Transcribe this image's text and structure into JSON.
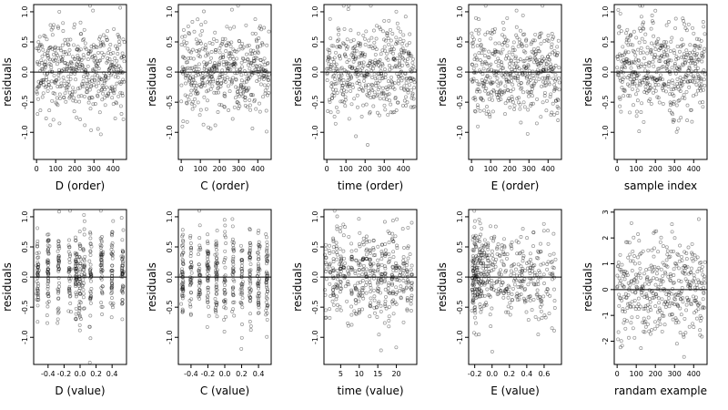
{
  "chart_data": [
    {
      "type": "scatter",
      "xlabel": "D (order)",
      "ylabel": "residuals",
      "xlim": [
        -15,
        470
      ],
      "ylim": [
        -1.45,
        1.12
      ],
      "xticks": [
        "0",
        "100",
        "200",
        "300",
        "400"
      ],
      "xtick_values": [
        0,
        100,
        200,
        300,
        400
      ],
      "yticks": [
        "1.0",
        "0.5",
        "0.0",
        "-0.5",
        "-1.0"
      ],
      "ytick_values": [
        1.0,
        0.5,
        0.0,
        -0.5,
        -1.0
      ],
      "zero_line": true,
      "pattern": "order",
      "n_points": 460
    },
    {
      "type": "scatter",
      "xlabel": "C (order)",
      "ylabel": "residuals",
      "xlim": [
        -15,
        470
      ],
      "ylim": [
        -1.45,
        1.12
      ],
      "xticks": [
        "0",
        "100",
        "200",
        "300",
        "400"
      ],
      "xtick_values": [
        0,
        100,
        200,
        300,
        400
      ],
      "yticks": [
        "1.0",
        "0.5",
        "0.0",
        "-0.5",
        "-1.0"
      ],
      "ytick_values": [
        1.0,
        0.5,
        0.0,
        -0.5,
        -1.0
      ],
      "zero_line": true,
      "pattern": "order",
      "n_points": 460
    },
    {
      "type": "scatter",
      "xlabel": "time (order)",
      "ylabel": "residuals",
      "xlim": [
        -15,
        470
      ],
      "ylim": [
        -1.45,
        1.12
      ],
      "xticks": [
        "0",
        "100",
        "200",
        "300",
        "400"
      ],
      "xtick_values": [
        0,
        100,
        200,
        300,
        400
      ],
      "yticks": [
        "1.0",
        "0.5",
        "0.0",
        "-0.5",
        "-1.0"
      ],
      "ytick_values": [
        1.0,
        0.5,
        0.0,
        -0.5,
        -1.0
      ],
      "zero_line": true,
      "pattern": "order",
      "n_points": 460
    },
    {
      "type": "scatter",
      "xlabel": "E (order)",
      "ylabel": "residuals",
      "xlim": [
        -15,
        470
      ],
      "ylim": [
        -1.45,
        1.12
      ],
      "xticks": [
        "0",
        "100",
        "200",
        "300",
        "400"
      ],
      "xtick_values": [
        0,
        100,
        200,
        300,
        400
      ],
      "yticks": [
        "1.0",
        "0.5",
        "0.0",
        "-0.5",
        "-1.0"
      ],
      "ytick_values": [
        1.0,
        0.5,
        0.0,
        -0.5,
        -1.0
      ],
      "zero_line": true,
      "pattern": "order",
      "n_points": 460
    },
    {
      "type": "scatter",
      "xlabel": "sample index",
      "ylabel": "residuals",
      "xlim": [
        -15,
        470
      ],
      "ylim": [
        -1.45,
        1.12
      ],
      "xticks": [
        "0",
        "100",
        "200",
        "300",
        "400"
      ],
      "xtick_values": [
        0,
        100,
        200,
        300,
        400
      ],
      "yticks": [
        "1.0",
        "0.5",
        "0.0",
        "-0.5",
        "-1.0"
      ],
      "ytick_values": [
        1.0,
        0.5,
        0.0,
        -0.5,
        -1.0
      ],
      "zero_line": true,
      "pattern": "order",
      "n_points": 460
    },
    {
      "type": "scatter",
      "xlabel": "D (value)",
      "ylabel": "residuals",
      "xlim": [
        -0.58,
        0.58
      ],
      "ylim": [
        -1.45,
        1.12
      ],
      "xticks": [
        "-0.4",
        "-0.2",
        "0.0",
        "0.2",
        "0.4"
      ],
      "xtick_values": [
        -0.4,
        -0.2,
        0.0,
        0.2,
        0.4
      ],
      "yticks": [
        "1.0",
        "0.5",
        "0.0",
        "-0.5",
        "-1.0"
      ],
      "ytick_values": [
        1.0,
        0.5,
        0.0,
        -0.5,
        -1.0
      ],
      "zero_line": true,
      "pattern": "discrete",
      "levels": [
        -0.53,
        -0.4,
        -0.27,
        -0.13,
        -0.05,
        0.0,
        0.05,
        0.13,
        0.27,
        0.4,
        0.53
      ],
      "n_points": 460
    },
    {
      "type": "scatter",
      "xlabel": "C (value)",
      "ylabel": "residuals",
      "xlim": [
        -0.55,
        0.55
      ],
      "ylim": [
        -1.45,
        1.12
      ],
      "xticks": [
        "-0.4",
        "-0.2",
        "0.0",
        "0.2",
        "0.4"
      ],
      "xtick_values": [
        -0.4,
        -0.2,
        0.0,
        0.2,
        0.4
      ],
      "yticks": [
        "1.0",
        "0.5",
        "0.0",
        "-0.5",
        "-1.0"
      ],
      "ytick_values": [
        1.0,
        0.5,
        0.0,
        -0.5,
        -1.0
      ],
      "zero_line": true,
      "pattern": "discrete",
      "levels": [
        -0.5,
        -0.4,
        -0.3,
        -0.2,
        -0.1,
        0.0,
        0.1,
        0.2,
        0.3,
        0.4,
        0.5
      ],
      "n_points": 460
    },
    {
      "type": "scatter",
      "xlabel": "time (value)",
      "ylabel": "residuals",
      "xlim": [
        0.5,
        25.5
      ],
      "ylim": [
        -1.45,
        1.12
      ],
      "xticks": [
        "5",
        "10",
        "15",
        "20"
      ],
      "xtick_values": [
        5,
        10,
        15,
        20
      ],
      "yticks": [
        "1.0",
        "0.5",
        "0.0",
        "-0.5",
        "-1.0"
      ],
      "ytick_values": [
        1.0,
        0.5,
        0.0,
        -0.5,
        -1.0
      ],
      "zero_line": true,
      "pattern": "discrete",
      "levels": [
        1,
        2,
        3,
        4,
        5,
        6,
        7,
        8,
        9,
        10,
        11,
        12,
        13,
        14,
        15,
        16,
        17,
        18,
        19,
        20,
        21,
        22,
        23,
        24
      ],
      "n_points": 460
    },
    {
      "type": "scatter",
      "xlabel": "E (value)",
      "ylabel": "residuals",
      "xlim": [
        -0.27,
        0.8
      ],
      "ylim": [
        -1.45,
        1.12
      ],
      "xticks": [
        "-0.2",
        "0.0",
        "0.2",
        "0.4",
        "0.6"
      ],
      "xtick_values": [
        -0.2,
        0.0,
        0.2,
        0.4,
        0.6
      ],
      "yticks": [
        "1.0",
        "0.5",
        "0.0",
        "-0.5",
        "-1.0"
      ],
      "ytick_values": [
        1.0,
        0.5,
        0.0,
        -0.5,
        -1.0
      ],
      "zero_line": true,
      "pattern": "skewed",
      "n_points": 460
    },
    {
      "type": "scatter",
      "xlabel": "randam example",
      "ylabel": "residuals",
      "xlim": [
        -15,
        470
      ],
      "ylim": [
        -2.9,
        3.1
      ],
      "xticks": [
        "0",
        "100",
        "200",
        "300",
        "400"
      ],
      "xtick_values": [
        0,
        100,
        200,
        300,
        400
      ],
      "yticks": [
        "3",
        "2",
        "1",
        "0",
        "-1",
        "-2"
      ],
      "ytick_values": [
        3,
        2,
        1,
        0,
        -1,
        -2
      ],
      "zero_line": true,
      "pattern": "random",
      "n_points": 400
    }
  ]
}
